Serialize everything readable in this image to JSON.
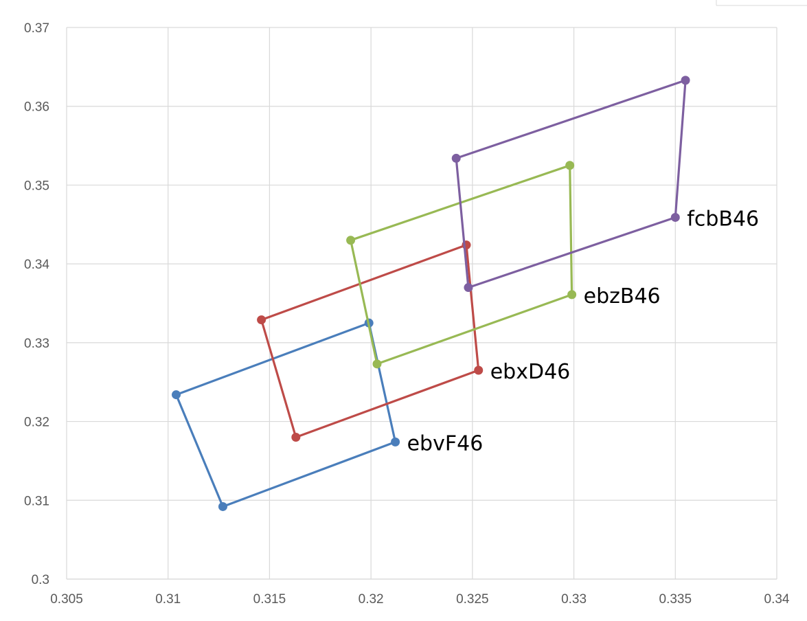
{
  "chart_data": {
    "type": "scatter",
    "title": "",
    "xlabel": "",
    "ylabel": "",
    "xlim": [
      0.305,
      0.34
    ],
    "ylim": [
      0.3,
      0.37
    ],
    "x_ticks": [
      "0.305",
      "0.31",
      "0.315",
      "0.32",
      "0.325",
      "0.33",
      "0.335",
      "0.34"
    ],
    "y_ticks": [
      "0.3",
      "0.31",
      "0.32",
      "0.33",
      "0.34",
      "0.35",
      "0.36",
      "0.37"
    ],
    "x_tick_values": [
      0.305,
      0.31,
      0.315,
      0.32,
      0.325,
      0.33,
      0.335,
      0.34
    ],
    "y_tick_values": [
      0.3,
      0.31,
      0.32,
      0.33,
      0.34,
      0.35,
      0.36,
      0.37
    ],
    "grid": true,
    "legend": "none",
    "series": [
      {
        "name": "ebvF46",
        "color": "#4a7ebb",
        "label_anchor_index": 3,
        "points": [
          {
            "x": 0.3199,
            "y": 0.3325
          },
          {
            "x": 0.3104,
            "y": 0.3234
          },
          {
            "x": 0.3127,
            "y": 0.3092
          },
          {
            "x": 0.3212,
            "y": 0.3174
          },
          {
            "x": 0.3199,
            "y": 0.3325
          }
        ]
      },
      {
        "name": "ebxD46",
        "color": "#be4b48",
        "label_anchor_index": 3,
        "points": [
          {
            "x": 0.3247,
            "y": 0.3424
          },
          {
            "x": 0.3146,
            "y": 0.3329
          },
          {
            "x": 0.3163,
            "y": 0.318
          },
          {
            "x": 0.3253,
            "y": 0.3265
          },
          {
            "x": 0.3247,
            "y": 0.3424
          }
        ]
      },
      {
        "name": "ebzB46",
        "color": "#98b954",
        "label_anchor_index": 3,
        "points": [
          {
            "x": 0.3298,
            "y": 0.3525
          },
          {
            "x": 0.319,
            "y": 0.343
          },
          {
            "x": 0.3203,
            "y": 0.3273
          },
          {
            "x": 0.3299,
            "y": 0.3361
          },
          {
            "x": 0.3298,
            "y": 0.3525
          }
        ]
      },
      {
        "name": "fcbB46",
        "color": "#7d5fa0",
        "label_anchor_index": 3,
        "points": [
          {
            "x": 0.3355,
            "y": 0.3633
          },
          {
            "x": 0.3242,
            "y": 0.3534
          },
          {
            "x": 0.3248,
            "y": 0.337
          },
          {
            "x": 0.335,
            "y": 0.3459
          },
          {
            "x": 0.3355,
            "y": 0.3633
          }
        ]
      }
    ]
  }
}
